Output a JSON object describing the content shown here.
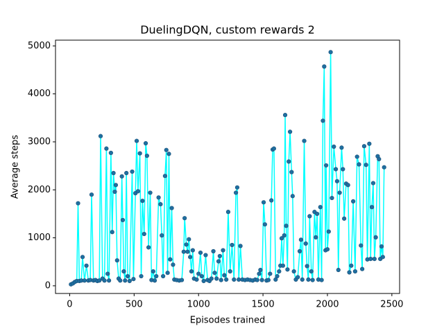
{
  "chart_data": {
    "type": "line",
    "title": "DuelingDQN, custom rewards 2",
    "x_label": "Episodes trained",
    "y_label": "Average steps",
    "x": [
      10,
      25,
      40,
      55,
      65,
      75,
      90,
      100,
      115,
      130,
      145,
      160,
      170,
      185,
      200,
      215,
      230,
      240,
      255,
      270,
      285,
      295,
      305,
      320,
      330,
      340,
      350,
      358,
      368,
      380,
      392,
      405,
      412,
      420,
      430,
      440,
      450,
      465,
      485,
      495,
      510,
      520,
      530,
      545,
      555,
      565,
      578,
      590,
      600,
      612,
      625,
      635,
      648,
      660,
      672,
      690,
      705,
      715,
      725,
      740,
      750,
      760,
      770,
      780,
      792,
      802,
      812,
      830,
      850,
      870,
      885,
      892,
      905,
      915,
      925,
      935,
      945,
      955,
      965,
      985,
      1000,
      1015,
      1025,
      1040,
      1055,
      1070,
      1085,
      1100,
      1115,
      1125,
      1140,
      1155,
      1165,
      1175,
      1190,
      1200,
      1215,
      1230,
      1245,
      1260,
      1275,
      1290,
      1300,
      1312,
      1325,
      1340,
      1360,
      1380,
      1400,
      1420,
      1440,
      1455,
      1470,
      1480,
      1492,
      1505,
      1515,
      1528,
      1542,
      1555,
      1565,
      1575,
      1585,
      1598,
      1610,
      1625,
      1635,
      1645,
      1655,
      1665,
      1672,
      1680,
      1690,
      1700,
      1710,
      1722,
      1730,
      1740,
      1755,
      1770,
      1785,
      1795,
      1805,
      1820,
      1832,
      1842,
      1852,
      1862,
      1875,
      1885,
      1900,
      1910,
      1920,
      1930,
      1945,
      1955,
      1965,
      1975,
      1985,
      1990,
      2000,
      2010,
      2025,
      2035,
      2050,
      2065,
      2075,
      2085,
      2095,
      2110,
      2120,
      2130,
      2145,
      2160,
      2170,
      2185,
      2200,
      2215,
      2230,
      2245,
      2260,
      2270,
      2285,
      2300,
      2310,
      2325,
      2335,
      2345,
      2355,
      2365,
      2375,
      2390,
      2400,
      2410,
      2420,
      2430,
      2440
    ],
    "series": [
      {
        "name": "Average steps",
        "color": "#00ffff",
        "marker_color": "#1f6fa0",
        "values": [
          30,
          50,
          80,
          100,
          1720,
          100,
          110,
          600,
          110,
          420,
          110,
          120,
          1900,
          110,
          120,
          100,
          110,
          3120,
          150,
          110,
          2860,
          250,
          110,
          2770,
          1120,
          2350,
          1960,
          2100,
          530,
          150,
          110,
          2280,
          1370,
          300,
          110,
          2350,
          200,
          100,
          2380,
          140,
          1930,
          3020,
          1970,
          2760,
          200,
          1770,
          1080,
          2970,
          2710,
          800,
          1940,
          120,
          300,
          110,
          200,
          1840,
          1700,
          1050,
          200,
          2290,
          2830,
          270,
          2750,
          550,
          1620,
          440,
          130,
          120,
          110,
          120,
          710,
          1410,
          860,
          710,
          970,
          600,
          300,
          740,
          150,
          130,
          250,
          690,
          200,
          100,
          640,
          120,
          100,
          150,
          720,
          270,
          150,
          510,
          620,
          120,
          740,
          220,
          130,
          1540,
          300,
          850,
          130,
          1940,
          2050,
          130,
          830,
          130,
          120,
          130,
          120,
          110,
          130,
          120,
          250,
          330,
          120,
          1740,
          1280,
          110,
          120,
          250,
          1780,
          2840,
          2860,
          130,
          200,
          300,
          420,
          990,
          420,
          1050,
          3560,
          1250,
          340,
          2590,
          3210,
          2370,
          1870,
          300,
          130,
          180,
          720,
          960,
          130,
          3020,
          880,
          410,
          130,
          1450,
          300,
          120,
          1540,
          1010,
          1500,
          130,
          1640,
          120,
          3440,
          4570,
          740,
          2510,
          760,
          1130,
          4870,
          1830,
          2900,
          2430,
          2180,
          330,
          1940,
          2880,
          2430,
          1400,
          2130,
          2100,
          280,
          420,
          1760,
          300,
          2690,
          2530,
          840,
          350,
          2910,
          2520,
          550,
          2960,
          560,
          1640,
          2140,
          560,
          1010,
          2700,
          2640,
          560,
          820,
          600,
          2470
        ]
      }
    ],
    "xlim": [
      -110,
      2560
    ],
    "ylim": [
      -160,
      5120
    ],
    "xticks": [
      0,
      500,
      1000,
      1500,
      2000,
      2500
    ],
    "yticks": [
      0,
      1000,
      2000,
      3000,
      4000,
      5000
    ],
    "grid": false
  }
}
